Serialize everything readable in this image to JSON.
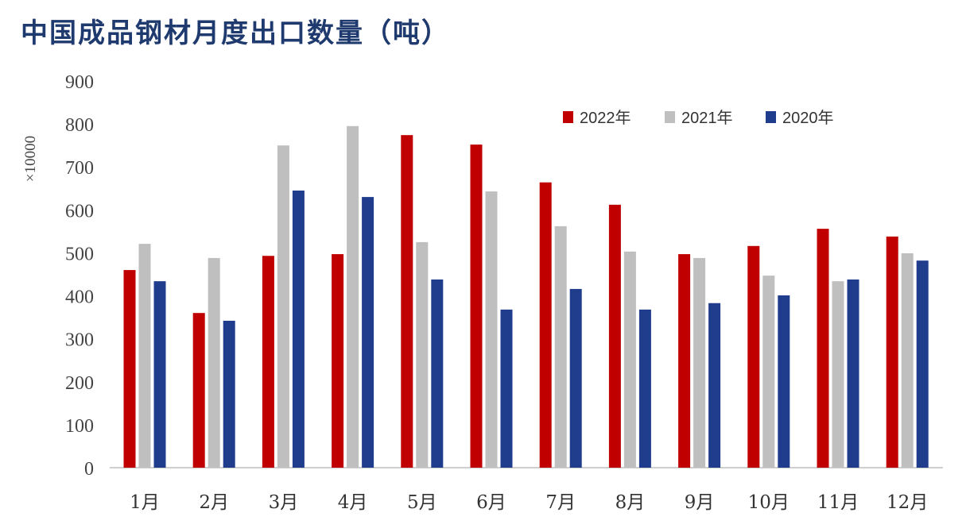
{
  "chart_data": {
    "type": "bar",
    "title": "中国成品钢材月度出口数量（吨）",
    "ylabel": "×10000",
    "xlabel": "",
    "ylim": [
      0,
      900
    ],
    "yticks": [
      0,
      100,
      200,
      300,
      400,
      500,
      600,
      700,
      800,
      900
    ],
    "grid": false,
    "legend_position": "top-right",
    "categories": [
      "1月",
      "2月",
      "3月",
      "4月",
      "5月",
      "6月",
      "7月",
      "8月",
      "9月",
      "10月",
      "11月",
      "12月"
    ],
    "series": [
      {
        "name": "2022年",
        "color": "#c00000",
        "values": [
          460,
          360,
          493,
          497,
          774,
          752,
          664,
          612,
          497,
          516,
          556,
          538
        ]
      },
      {
        "name": "2021年",
        "color": "#bfbfbf",
        "values": [
          521,
          488,
          750,
          795,
          525,
          643,
          562,
          503,
          488,
          447,
          434,
          499
        ]
      },
      {
        "name": "2020年",
        "color": "#1f3d8c",
        "values": [
          434,
          342,
          645,
          630,
          438,
          368,
          416,
          368,
          383,
          401,
          438,
          482
        ]
      }
    ]
  }
}
